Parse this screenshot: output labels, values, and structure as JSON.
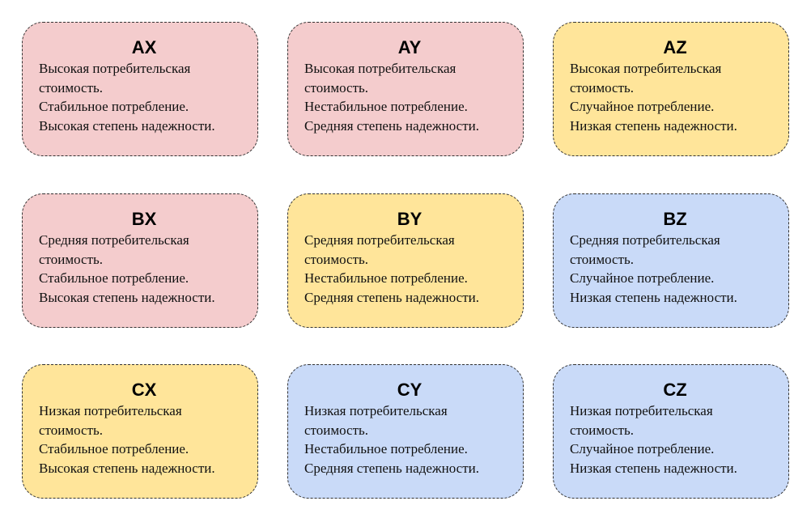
{
  "colors": {
    "pink": "#f4cccd",
    "yellow": "#ffe59a",
    "blue": "#c9daf8",
    "border": "#333333"
  },
  "cards": [
    {
      "code": "AX",
      "color": "#f4cccd",
      "lines": [
        "Высокая потребительская",
        "стоимость.",
        "Стабильное потребление.",
        "Высокая степень надежности."
      ]
    },
    {
      "code": "AY",
      "color": "#f4cccd",
      "lines": [
        "Высокая потребительская",
        "стоимость.",
        "Нестабильное потребление.",
        "Средняя степень надежности."
      ]
    },
    {
      "code": "AZ",
      "color": "#ffe59a",
      "lines": [
        "Высокая потребительская",
        "стоимость.",
        "Случайное  потребление.",
        "Низкая степень надежности."
      ]
    },
    {
      "code": "BX",
      "color": "#f4cccd",
      "lines": [
        "Средняя потребительская",
        "стоимость.",
        "Стабильное потребление.",
        "Высокая степень надежности."
      ]
    },
    {
      "code": "BY",
      "color": "#ffe59a",
      "lines": [
        "Средняя потребительская",
        "стоимость.",
        "Нестабильное потребление.",
        "Средняя степень надежности."
      ]
    },
    {
      "code": "BZ",
      "color": "#c9daf8",
      "lines": [
        "Средняя потребительская",
        "стоимость.",
        "Случайное потребление.",
        "Низкая степень надежности."
      ]
    },
    {
      "code": "CX",
      "color": "#ffe59a",
      "lines": [
        "Низкая потребительская",
        "стоимость.",
        "Стабильное потребление.",
        "Высокая степень надежности."
      ]
    },
    {
      "code": "CY",
      "color": "#c9daf8",
      "lines": [
        "Низкая потребительская",
        "стоимость.",
        "Нестабильное потребление.",
        "Средняя степень надежности."
      ]
    },
    {
      "code": "CZ",
      "color": "#c9daf8",
      "lines": [
        "Низкая потребительская",
        "стоимость.",
        "Случайное потребление.",
        "Низкая степень надежности."
      ]
    }
  ]
}
